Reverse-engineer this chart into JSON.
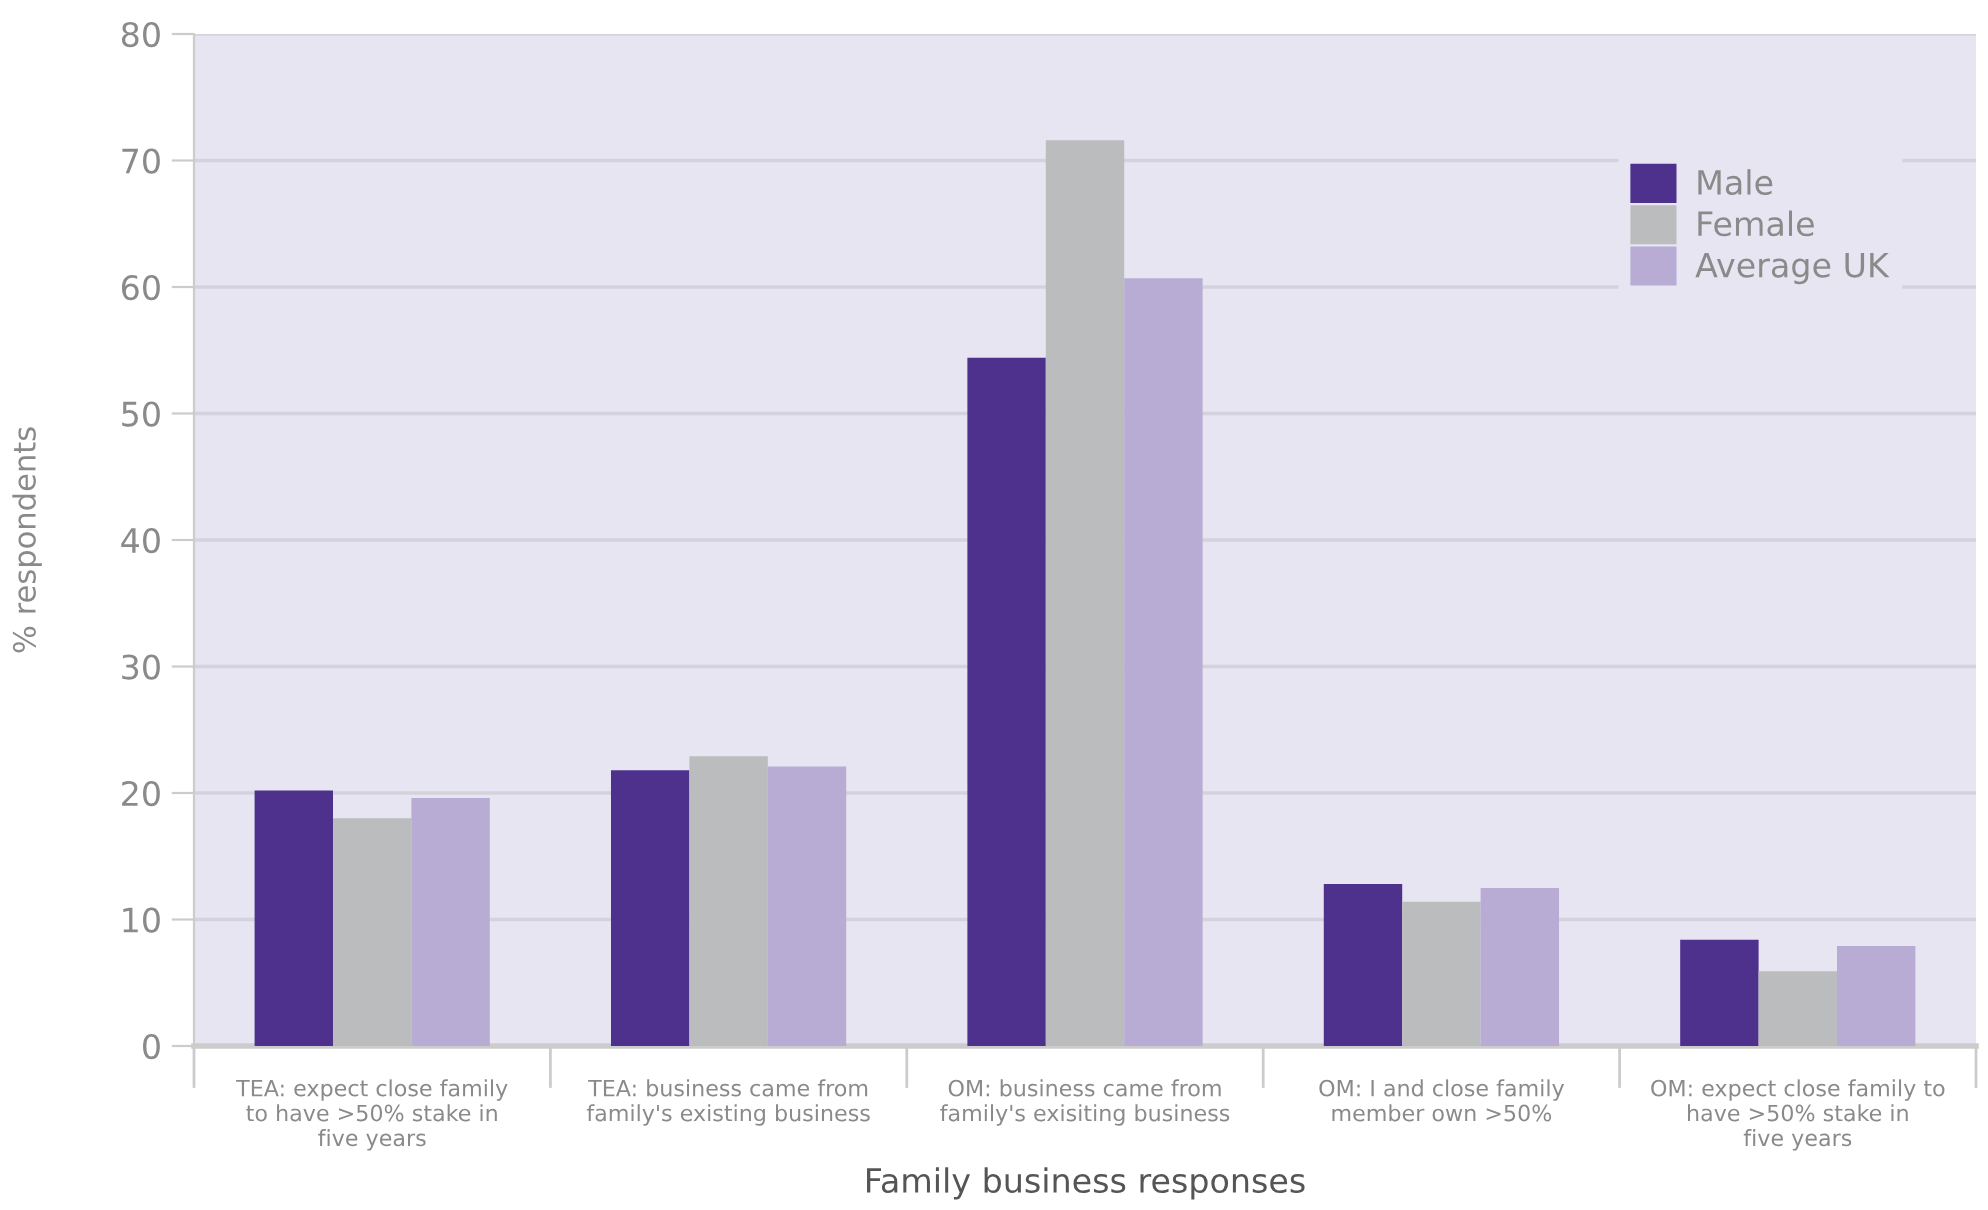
{
  "chart_data": {
    "type": "bar",
    "xlabel": "Family business responses",
    "ylabel": "% respondents",
    "categories": [
      "TEA: expect close family\nto have >50% stake in\nfive years",
      "TEA: business came from\nfamily's existing business",
      "OM: business came from\nfamily's exisiting business",
      "OM: I and close family\nmember own >50%",
      "OM: expect close family to\nhave >50% stake in\nfive years"
    ],
    "series": [
      {
        "name": "Male",
        "color": "#4e318c",
        "values": [
          20.2,
          21.8,
          54.4,
          12.8,
          8.4
        ]
      },
      {
        "name": "Female",
        "color": "#bbbcbe",
        "values": [
          18.0,
          22.9,
          71.6,
          11.4,
          5.9
        ]
      },
      {
        "name": "Average UK",
        "color": "#b8acd5",
        "values": [
          19.6,
          22.1,
          60.7,
          12.5,
          7.9
        ]
      }
    ],
    "ylim": [
      0,
      80
    ],
    "yticks": [
      0,
      10,
      20,
      30,
      40,
      50,
      60,
      70,
      80
    ],
    "grid": "y",
    "legend": "top right"
  }
}
